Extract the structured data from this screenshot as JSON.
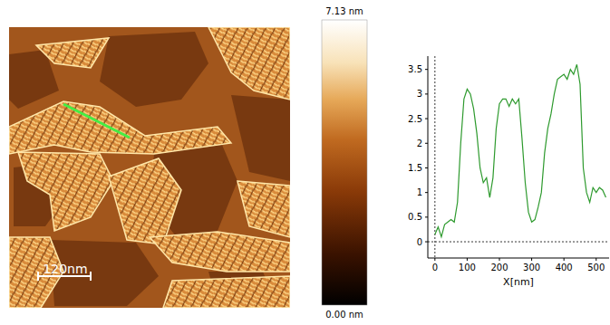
{
  "chart_data": {
    "type": "line",
    "x_label": "X[nm]",
    "color": "#2e9a2e",
    "x": [
      0,
      10,
      20,
      30,
      40,
      50,
      60,
      70,
      80,
      90,
      100,
      110,
      120,
      130,
      140,
      150,
      160,
      170,
      180,
      190,
      200,
      210,
      220,
      230,
      240,
      250,
      260,
      270,
      280,
      290,
      300,
      310,
      320,
      330,
      340,
      350,
      360,
      370,
      380,
      390,
      400,
      410,
      420,
      430,
      440,
      450,
      460,
      470,
      480,
      490,
      500,
      510,
      520,
      530
    ],
    "values": [
      0.15,
      0.3,
      0.1,
      0.35,
      0.4,
      0.45,
      0.4,
      0.8,
      2.0,
      2.9,
      3.1,
      3.0,
      2.7,
      2.2,
      1.5,
      1.2,
      1.3,
      0.9,
      1.3,
      2.3,
      2.8,
      2.9,
      2.9,
      2.75,
      2.9,
      2.8,
      2.9,
      2.1,
      1.2,
      0.6,
      0.4,
      0.45,
      0.7,
      1.0,
      1.8,
      2.3,
      2.6,
      3.0,
      3.3,
      3.35,
      3.4,
      3.3,
      3.5,
      3.4,
      3.6,
      3.2,
      1.5,
      1.0,
      0.8,
      1.1,
      1.0,
      1.1,
      1.05,
      0.9
    ],
    "xlim": [
      -22,
      540
    ],
    "ylim": [
      -0.33,
      3.77
    ],
    "xticks": [
      0,
      100,
      200,
      300,
      400,
      500
    ],
    "yticks": [
      0,
      0.5,
      1,
      1.5,
      2,
      2.5,
      3,
      3.5
    ]
  },
  "afm_image": {
    "scale_bar_label": "120nm",
    "colorbar": {
      "range": [
        0,
        7.13
      ],
      "ticks": [
        {
          "value": 7.13,
          "label": "7.13 nm"
        },
        {
          "value": 0,
          "label": "0.00 nm"
        }
      ]
    }
  }
}
